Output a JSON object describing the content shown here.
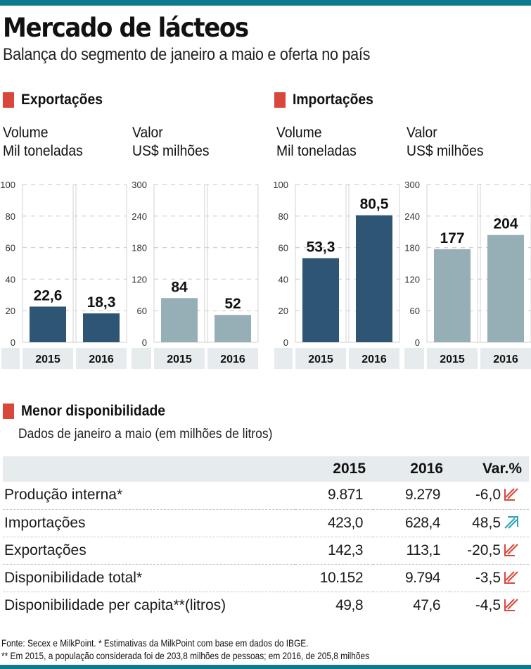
{
  "header": {
    "title": "Mercado de lácteos",
    "subtitle": "Balança do segmento de janeiro a maio e oferta no país"
  },
  "colors": {
    "accent_bar": "#0e7a90",
    "section_marker": "#d9473b",
    "volume_bar": "#2e5573",
    "value_bar": "#96aeb5",
    "down_arrow": "#d9473b",
    "up_arrow": "#2aa3b3"
  },
  "sections": {
    "exports": "Exportações",
    "imports": "Importações",
    "availability": "Menor disponibilidade"
  },
  "chart_data": [
    {
      "type": "bar",
      "group": "Exportações",
      "title": "Volume",
      "ylabel": "Mil toneladas",
      "categories": [
        "2015",
        "2016"
      ],
      "values": [
        22.6,
        18.3
      ],
      "value_labels": [
        "22,6",
        "18,3"
      ],
      "ylim": [
        0,
        100
      ],
      "yticks": [
        0,
        20,
        40,
        60,
        80,
        100
      ],
      "grid": true,
      "color": "#2e5573"
    },
    {
      "type": "bar",
      "group": "Exportações",
      "title": "Valor",
      "ylabel": "US$ milhões",
      "categories": [
        "2015",
        "2016"
      ],
      "values": [
        84,
        52
      ],
      "value_labels": [
        "84",
        "52"
      ],
      "ylim": [
        0,
        300
      ],
      "yticks": [
        0,
        60,
        120,
        180,
        240,
        300
      ],
      "grid": true,
      "color": "#96aeb5"
    },
    {
      "type": "bar",
      "group": "Importações",
      "title": "Volume",
      "ylabel": "Mil toneladas",
      "categories": [
        "2015",
        "2016"
      ],
      "values": [
        53.3,
        80.5
      ],
      "value_labels": [
        "53,3",
        "80,5"
      ],
      "ylim": [
        0,
        100
      ],
      "yticks": [
        0,
        20,
        40,
        60,
        80,
        100
      ],
      "grid": true,
      "color": "#2e5573"
    },
    {
      "type": "bar",
      "group": "Importações",
      "title": "Valor",
      "ylabel": "US$ milhões",
      "categories": [
        "2015",
        "2016"
      ],
      "values": [
        177,
        204
      ],
      "value_labels": [
        "177",
        "204"
      ],
      "ylim": [
        0,
        300
      ],
      "yticks": [
        0,
        60,
        120,
        180,
        240,
        300
      ],
      "grid": true,
      "color": "#96aeb5"
    }
  ],
  "table": {
    "subtitle": "Dados de janeiro a maio (em milhões de litros)",
    "columns": [
      "",
      "2015",
      "2016",
      "Var.%"
    ],
    "rows": [
      {
        "name": "Produção interna*",
        "y2015": "9.871",
        "y2016": "9.279",
        "var": "-6,0",
        "trend": "down"
      },
      {
        "name": "Importações",
        "y2015": "423,0",
        "y2016": "628,4",
        "var": "48,5",
        "trend": "up"
      },
      {
        "name": "Exportações",
        "y2015": "142,3",
        "y2016": "113,1",
        "var": "-20,5",
        "trend": "down"
      },
      {
        "name": "Disponibilidade total*",
        "y2015": "10.152",
        "y2016": "9.794",
        "var": "-3,5",
        "trend": "down"
      },
      {
        "name": "Disponibilidade per capita**(litros)",
        "y2015": "49,8",
        "y2016": "47,6",
        "var": "-4,5",
        "trend": "down"
      }
    ]
  },
  "footer": {
    "line1": "Fonte: Secex e MilkPoint. * Estimativas da MilkPoint com base em dados do IBGE.",
    "line2": "** Em 2015, a população considerada foi de 203,8 milhões de pessoas; em 2016, de 205,8 milhões"
  }
}
